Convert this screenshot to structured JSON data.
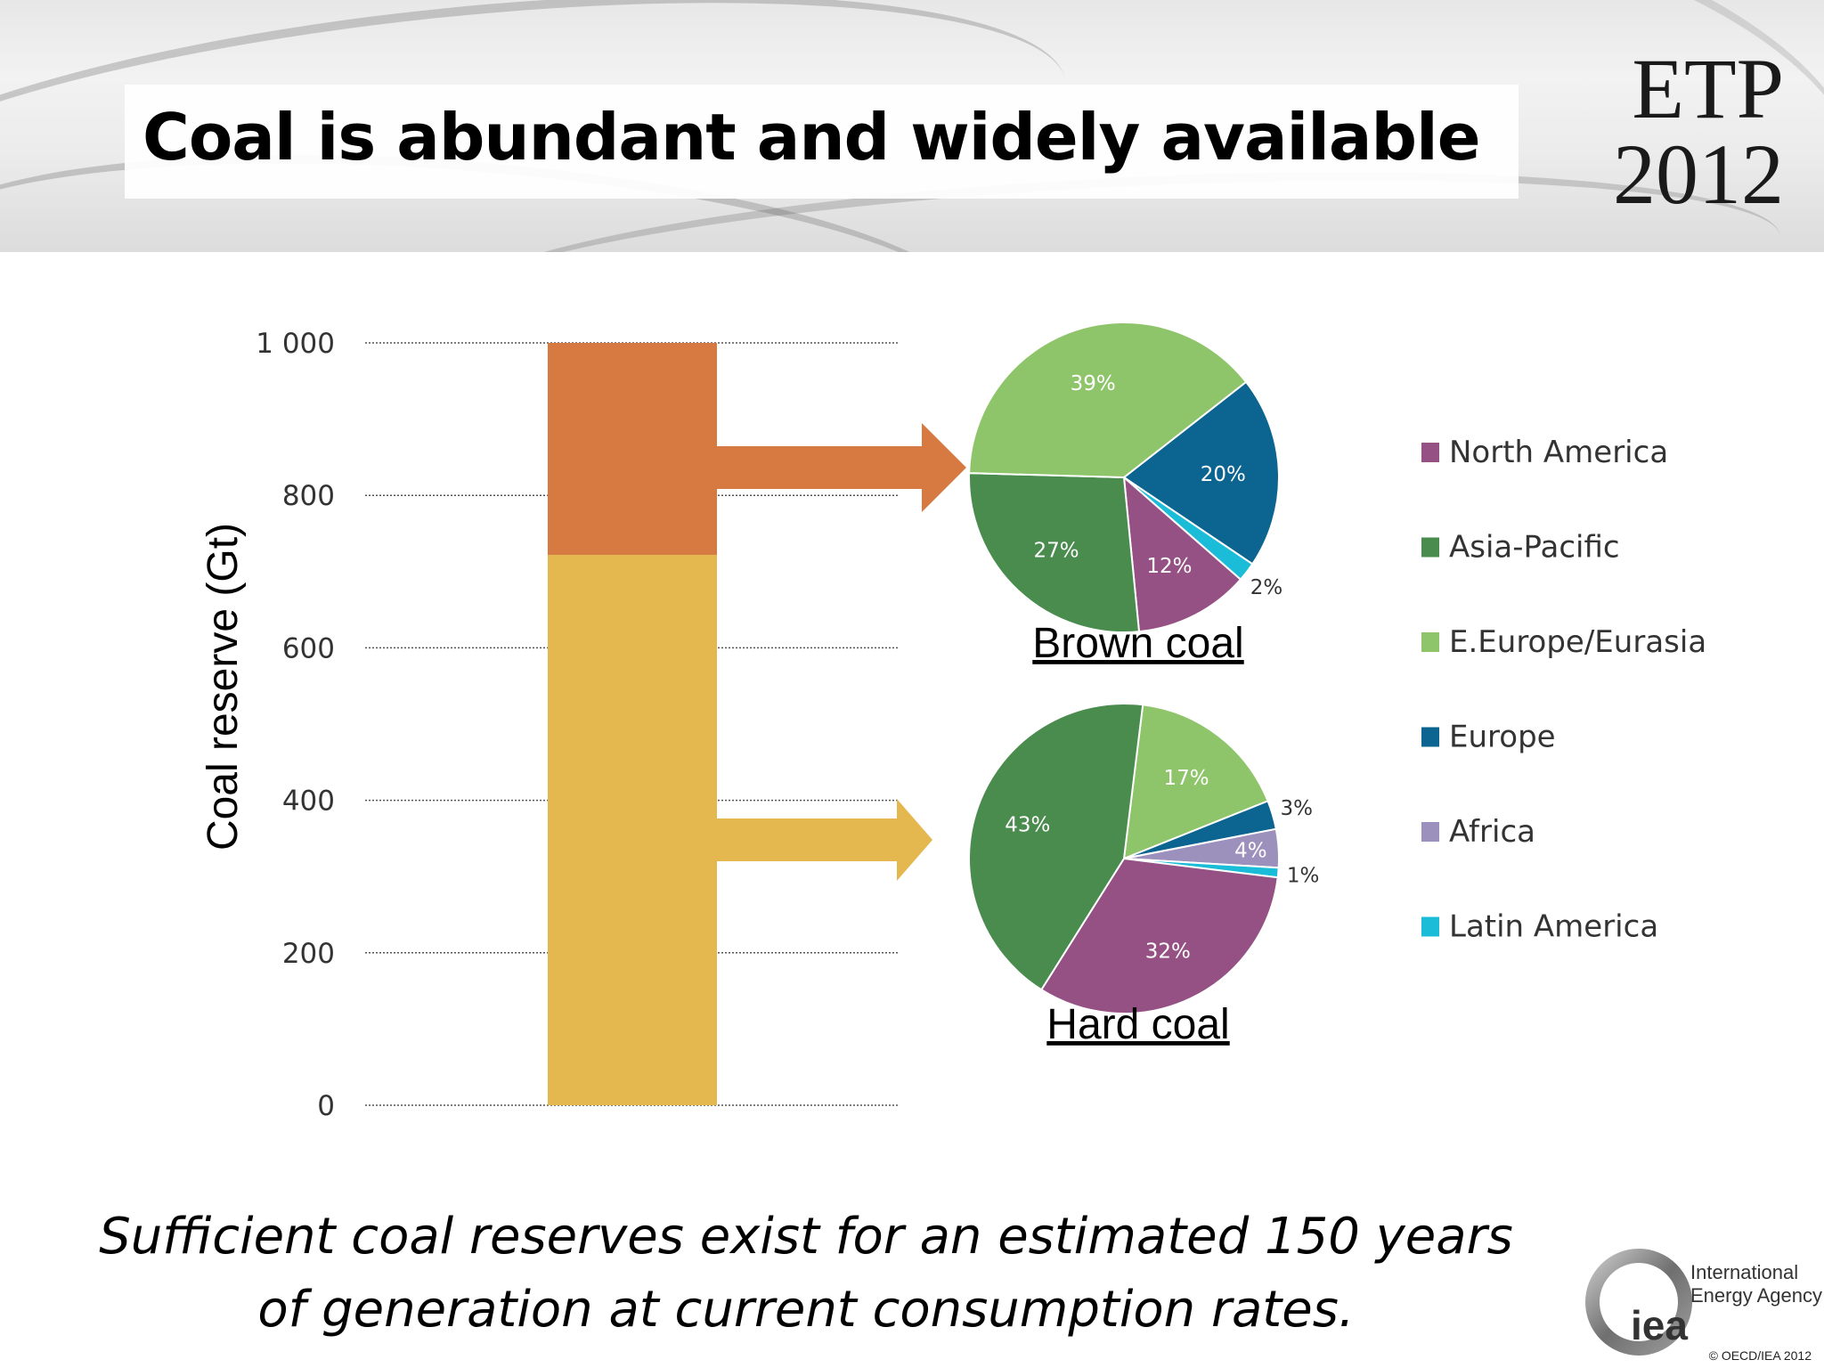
{
  "slide": {
    "title": "Coal is abundant and widely available",
    "brand_line1": "ETP",
    "brand_line2": "2012",
    "footnote_line1": "Sufficient coal reserves exist for an estimated 150 years",
    "footnote_line2": "of generation at current consumption rates.",
    "logo": {
      "mark": "iea",
      "name_line1": "International",
      "name_line2": "Energy Agency",
      "copyright": "© OECD/IEA 2012"
    }
  },
  "chart_data": [
    {
      "type": "bar",
      "stacked": true,
      "ylabel": "Coal reserve (Gt)",
      "ylim": [
        0,
        1000
      ],
      "yticks": [
        0,
        200,
        400,
        600,
        800,
        1000
      ],
      "ytick_labels": [
        "0",
        "200",
        "400",
        "600",
        "800",
        "1 000"
      ],
      "grid": "horizontal-dotted",
      "series": [
        {
          "name": "Hard coal",
          "value": 722,
          "color": "#E4B84F"
        },
        {
          "name": "Brown coal",
          "value": 278,
          "color": "#D67A41"
        }
      ]
    },
    {
      "type": "pie",
      "title": "Brown coal",
      "slices": [
        {
          "name": "Europe",
          "value": 20,
          "label": "20%",
          "color": "#0C6490"
        },
        {
          "name": "Latin America",
          "value": 2,
          "label": "2%",
          "color": "#1ABCD8"
        },
        {
          "name": "North America",
          "value": 12,
          "label": "12%",
          "color": "#955183"
        },
        {
          "name": "Asia-Pacific",
          "value": 27,
          "label": "27%",
          "color": "#4A8B4E"
        },
        {
          "name": "E.Europe/Eurasia",
          "value": 39,
          "label": "39%",
          "color": "#8FC56A"
        }
      ]
    },
    {
      "type": "pie",
      "title": "Hard coal",
      "slices": [
        {
          "name": "E.Europe/Eurasia",
          "value": 17,
          "label": "17%",
          "color": "#8FC56A"
        },
        {
          "name": "Europe",
          "value": 3,
          "label": "3%",
          "color": "#0C6490"
        },
        {
          "name": "Africa",
          "value": 4,
          "label": "4%",
          "color": "#9B91BC"
        },
        {
          "name": "Latin America",
          "value": 1,
          "label": "1%",
          "color": "#1ABCD8"
        },
        {
          "name": "North America",
          "value": 32,
          "label": "32%",
          "color": "#955183"
        },
        {
          "name": "Asia-Pacific",
          "value": 43,
          "label": "43%",
          "color": "#4A8B4E"
        }
      ]
    }
  ],
  "legend": {
    "placement": "right",
    "items": [
      {
        "name": "North America",
        "color": "#955183"
      },
      {
        "name": "Asia-Pacific",
        "color": "#4A8B4E"
      },
      {
        "name": "E.Europe/Eurasia",
        "color": "#8FC56A"
      },
      {
        "name": "Europe",
        "color": "#0C6490"
      },
      {
        "name": "Africa",
        "color": "#9B91BC"
      },
      {
        "name": "Latin America",
        "color": "#1ABCD8"
      }
    ]
  }
}
